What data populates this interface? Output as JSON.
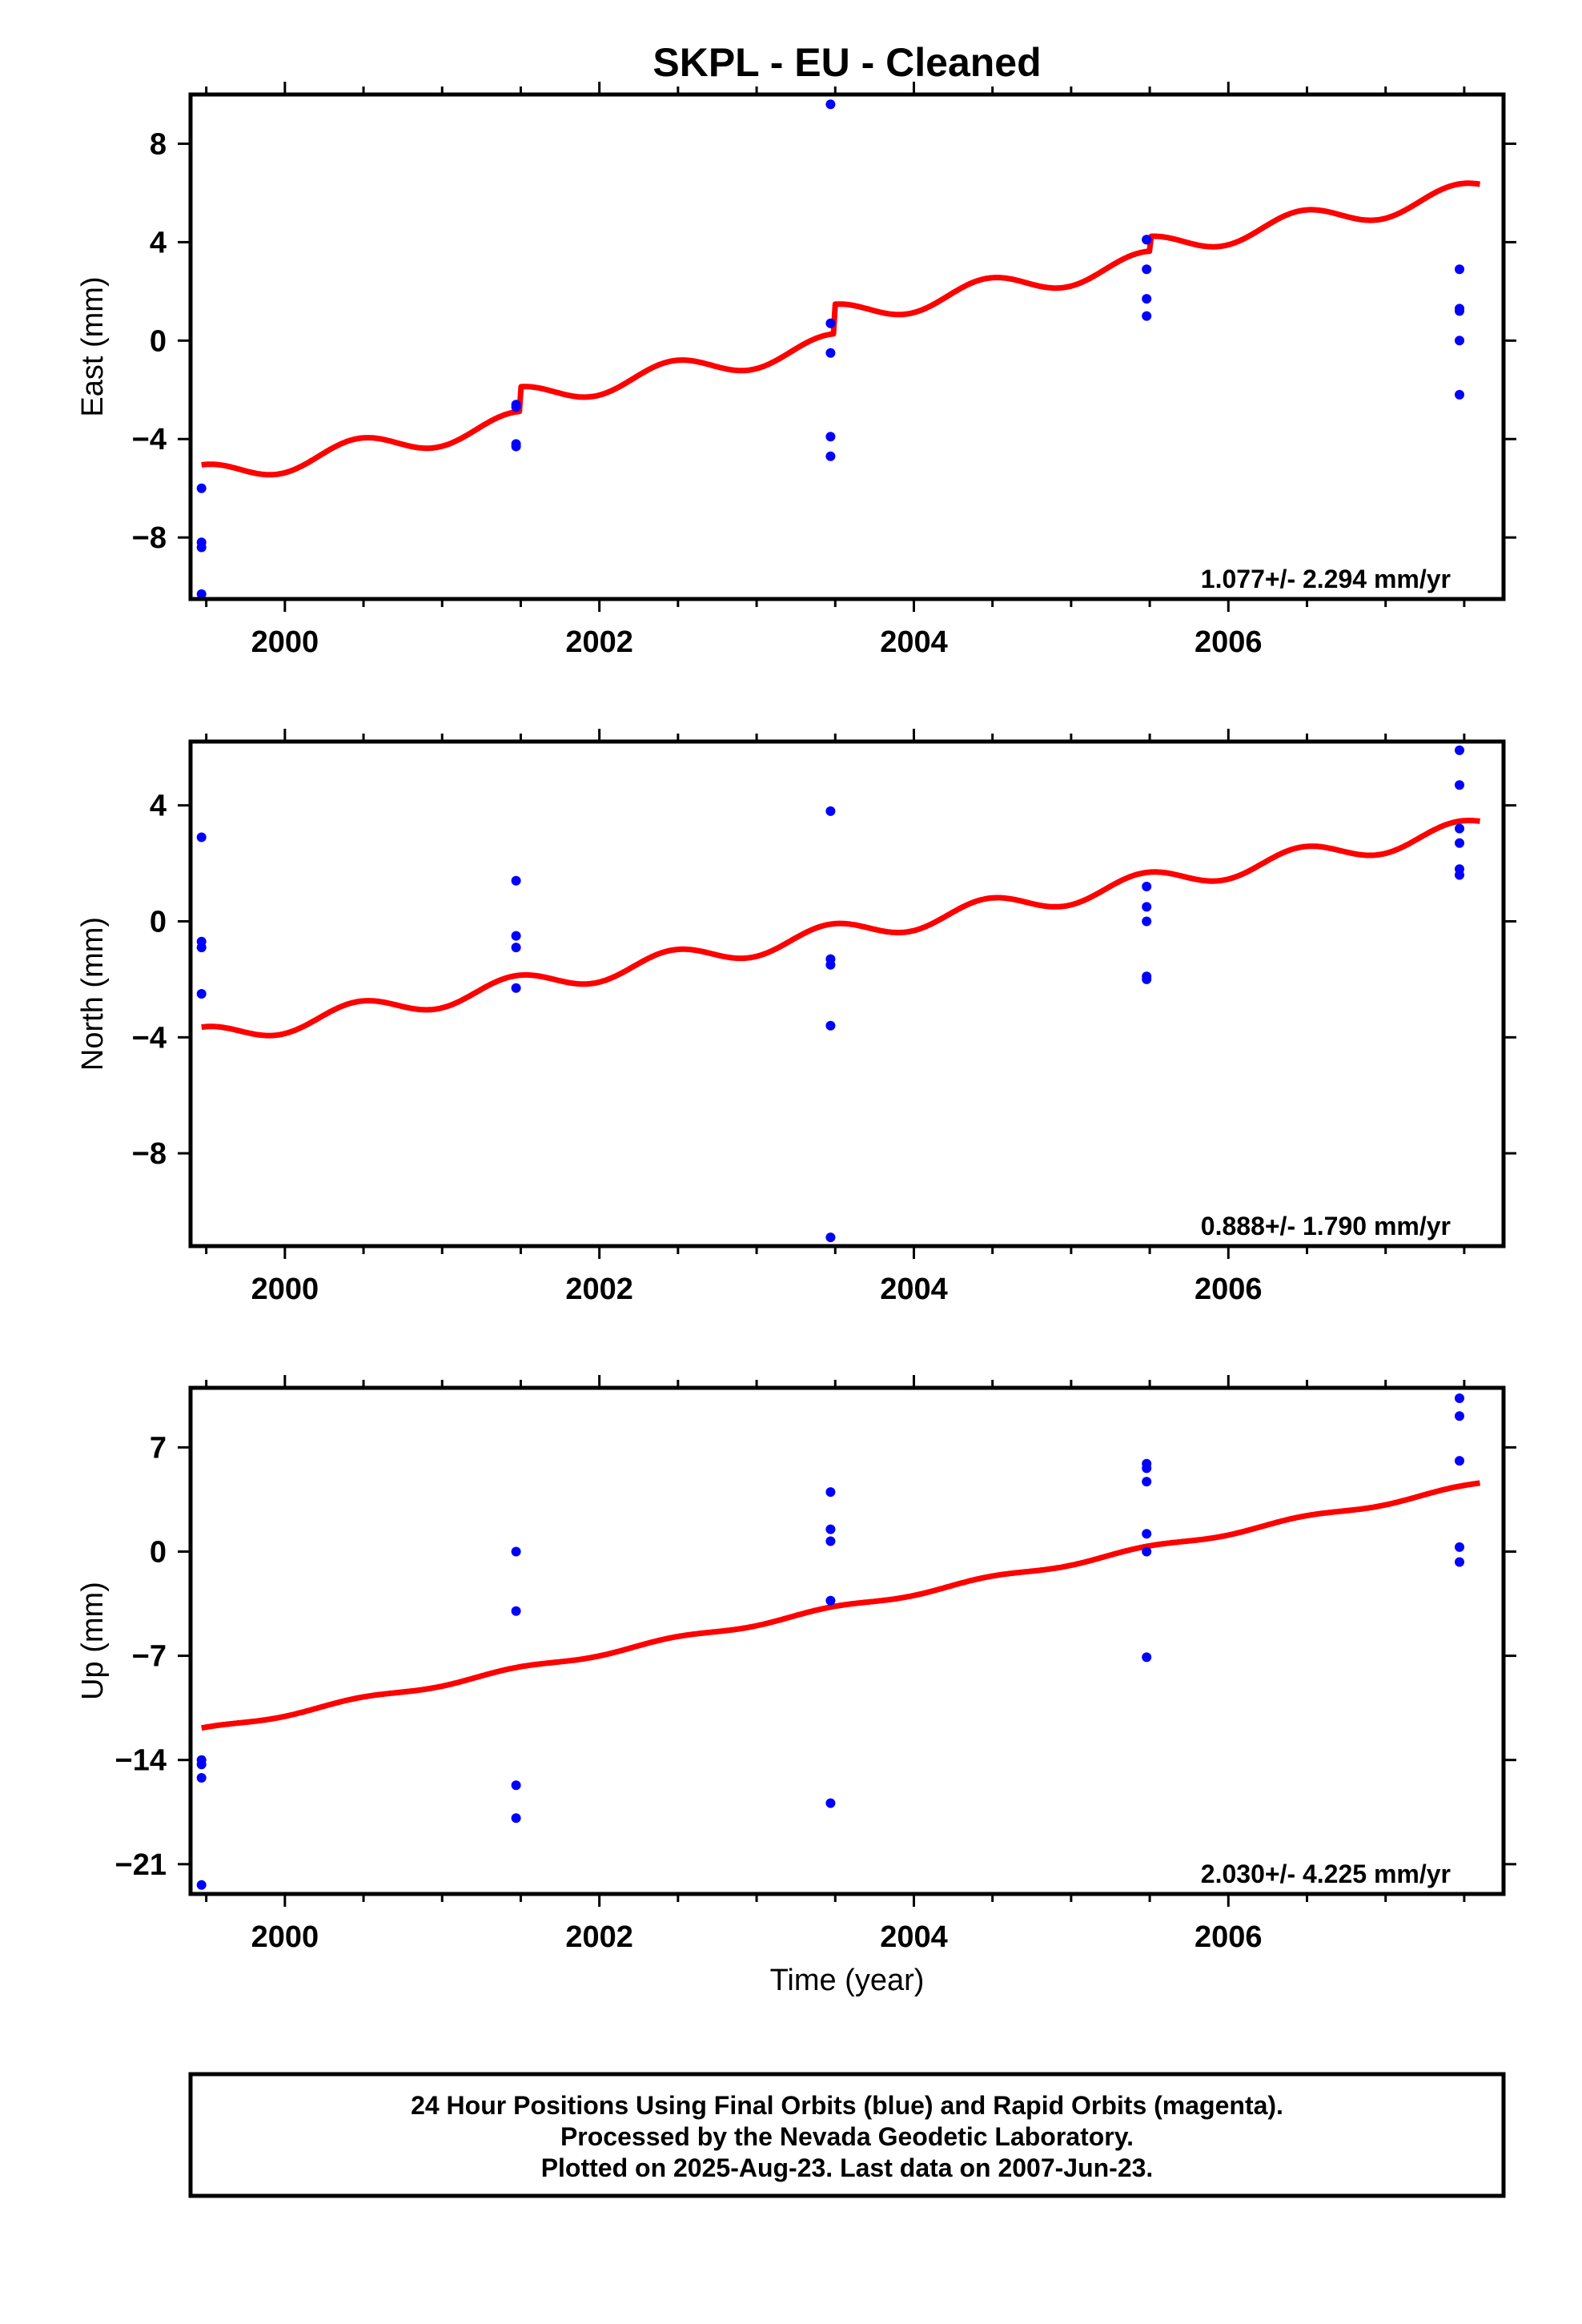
{
  "title": "SKPL  - EU - Cleaned",
  "xlabel": "Time (year)",
  "footer": {
    "line1": "24 Hour Positions Using Final Orbits (blue) and Rapid Orbits (magenta).",
    "line2": "Processed by the Nevada Geodetic Laboratory.",
    "line3": "Plotted on 2025-Aug-23. Last data on 2007-Jun-23."
  },
  "colors": {
    "points": "#0000ff",
    "fit": "#ff0000",
    "axes": "#000000"
  },
  "chart_data": [
    {
      "type": "scatter",
      "ylabel": "East (mm)",
      "rate_text": "1.077+/- 2.294 mm/yr",
      "xlim": [
        1999.4,
        2007.75
      ],
      "ylim": [
        -10.5,
        10
      ],
      "xticks": [
        2000,
        2002,
        2004,
        2006
      ],
      "yticks": [
        -8,
        -4,
        0,
        4,
        8
      ],
      "yticklabels": [
        "−8",
        "−4",
        "0",
        "4",
        "8"
      ],
      "grid": false,
      "points": {
        "x": [
          1999.47,
          1999.47,
          1999.47,
          1999.47,
          2001.47,
          2001.47,
          2001.47,
          2001.47,
          2003.47,
          2003.47,
          2003.47,
          2003.47,
          2003.47,
          2005.48,
          2005.48,
          2005.48,
          2005.48,
          2005.48,
          2007.47,
          2007.47,
          2007.47,
          2007.47,
          2007.47
        ],
        "y": [
          -6.0,
          -8.2,
          -8.4,
          -10.3,
          -2.6,
          -2.7,
          -4.2,
          -4.3,
          9.6,
          0.7,
          -0.5,
          -3.9,
          -4.7,
          4.1,
          4.1,
          2.9,
          1.7,
          1.0,
          2.9,
          1.3,
          1.2,
          0.0,
          -2.2
        ]
      },
      "fit": {
        "intercept": -5.5,
        "rate": 1.077,
        "t0": 1999.47,
        "annual_amplitude": 0.45,
        "annual_phase": 1.6,
        "offsets": [
          {
            "epoch": 2001.5,
            "value": 1.0
          },
          {
            "epoch": 2003.5,
            "value": 1.2
          },
          {
            "epoch": 2005.5,
            "value": 0.6
          }
        ]
      }
    },
    {
      "type": "scatter",
      "ylabel": "North (mm)",
      "rate_text": "0.888+/- 1.790 mm/yr",
      "xlim": [
        1999.4,
        2007.75
      ],
      "ylim": [
        -11.2,
        6.2
      ],
      "xticks": [
        2000,
        2002,
        2004,
        2006
      ],
      "yticks": [
        -8,
        -4,
        0,
        4
      ],
      "yticklabels": [
        "−8",
        "−4",
        "0",
        "4"
      ],
      "grid": false,
      "points": {
        "x": [
          1999.47,
          1999.47,
          1999.47,
          1999.47,
          2001.47,
          2001.47,
          2001.47,
          2001.47,
          2003.47,
          2003.47,
          2003.47,
          2003.47,
          2003.47,
          2005.48,
          2005.48,
          2005.48,
          2005.48,
          2005.48,
          2007.47,
          2007.47,
          2007.47,
          2007.47,
          2007.47,
          2007.47
        ],
        "y": [
          2.9,
          -0.7,
          -0.9,
          -2.5,
          1.4,
          -0.5,
          -0.9,
          -2.3,
          3.8,
          -1.3,
          -1.5,
          -3.6,
          -10.9,
          1.2,
          0.5,
          0.0,
          -1.9,
          -2.0,
          5.9,
          4.7,
          3.2,
          2.7,
          1.8,
          1.6
        ]
      },
      "fit": {
        "intercept": -4.0,
        "rate": 0.888,
        "t0": 1999.47,
        "annual_amplitude": 0.35,
        "annual_phase": 1.6,
        "offsets": []
      }
    },
    {
      "type": "scatter",
      "ylabel": "Up (mm)",
      "rate_text": "2.030+/- 4.225 mm/yr",
      "xlim": [
        1999.4,
        2007.75
      ],
      "ylim": [
        -23,
        11
      ],
      "xticks": [
        2000,
        2002,
        2004,
        2006
      ],
      "yticks": [
        -21,
        -14,
        -7,
        0,
        7
      ],
      "yticklabels": [
        "−21",
        "−14",
        "−7",
        "0",
        "7"
      ],
      "grid": false,
      "points": {
        "x": [
          1999.47,
          1999.47,
          1999.47,
          1999.47,
          2001.47,
          2001.47,
          2001.47,
          2001.47,
          2003.47,
          2003.47,
          2003.47,
          2003.47,
          2003.47,
          2005.48,
          2005.48,
          2005.48,
          2005.48,
          2005.48,
          2005.48,
          2007.47,
          2007.47,
          2007.47,
          2007.47,
          2007.47
        ],
        "y": [
          -14.0,
          -14.3,
          -15.2,
          -22.4,
          0.0,
          -4.0,
          -15.7,
          -17.9,
          4.0,
          1.5,
          0.7,
          -3.3,
          -16.9,
          5.9,
          5.6,
          4.7,
          1.2,
          0.0,
          -7.1,
          10.3,
          9.1,
          6.1,
          0.3,
          -0.7
        ]
      },
      "fit": {
        "intercept": -12.0,
        "rate": 2.03,
        "t0": 1999.47,
        "annual_amplitude": 0.15,
        "annual_phase": 1.6,
        "offsets": []
      }
    }
  ]
}
